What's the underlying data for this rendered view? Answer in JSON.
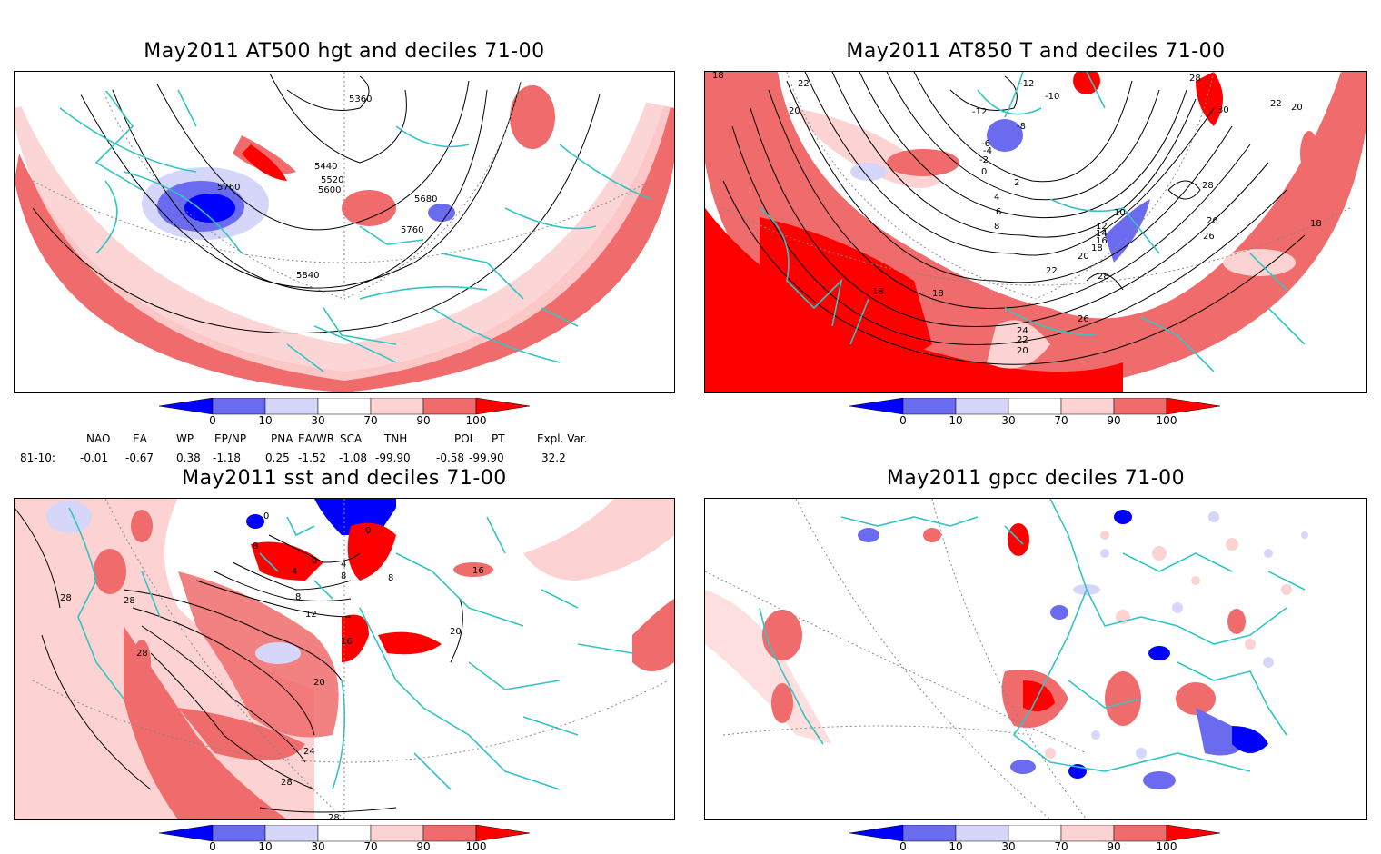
{
  "panels": [
    {
      "id": "p1",
      "title": "May2011 AT500 hgt and deciles 71-00",
      "contour_labels": [
        "5360",
        "5440",
        "5520",
        "5600",
        "5680",
        "5760",
        "5760",
        "5840"
      ]
    },
    {
      "id": "p2",
      "title": "May2011 AT850 T and deciles 71-00",
      "contour_labels": [
        "18",
        "22",
        "20",
        "-12",
        "-10",
        "-12",
        "-8",
        "-6",
        "-4",
        "-2",
        "0",
        "2",
        "4",
        "6",
        "8",
        "28",
        "30",
        "22",
        "20",
        "28",
        "10",
        "12",
        "14",
        "16",
        "18",
        "20",
        "26",
        "26",
        "22",
        "28",
        "18",
        "18",
        "26",
        "24",
        "22",
        "20",
        "18"
      ]
    },
    {
      "id": "p3",
      "title": "May2011 sst and deciles 71-00",
      "contour_labels": [
        "0",
        "0",
        "8",
        "0",
        "4",
        "4",
        "8",
        "8",
        "16",
        "8",
        "12",
        "16",
        "20",
        "20",
        "24",
        "28",
        "28",
        "28",
        "28",
        "28"
      ]
    },
    {
      "id": "p4",
      "title": "May2011 gpcc deciles 71-00",
      "contour_labels": []
    }
  ],
  "colorbar": {
    "labels": [
      "0",
      "10",
      "30",
      "70",
      "90",
      "100"
    ],
    "colors": [
      "#0000ff",
      "#6b6bf0",
      "#d6d6fb",
      "#ffffff",
      "#fcd2d2",
      "#f06b6b",
      "#ff0000"
    ]
  },
  "teleconnections": {
    "header": [
      "NAO",
      "EA",
      "WP",
      "EP/NP",
      "PNA",
      "EA/WR",
      "SCA",
      "TNH",
      "POL",
      "PT",
      "Expl. Var."
    ],
    "row_label": "81-10:",
    "values": [
      "-0.01",
      "-0.67",
      "0.38",
      "-1.18",
      "0.25",
      "-1.52",
      "-1.08",
      "-99.90",
      "-0.58",
      "-99.90",
      "32.2"
    ]
  },
  "colors": {
    "coast": "#33c4c4",
    "contour": "#000000",
    "strong_pos": "#ff0000",
    "pos": "#f06b6b",
    "weak_pos": "#fcd2d2",
    "weak_neg": "#d6d6fb",
    "neg": "#6b6bf0",
    "strong_neg": "#0000ff"
  }
}
